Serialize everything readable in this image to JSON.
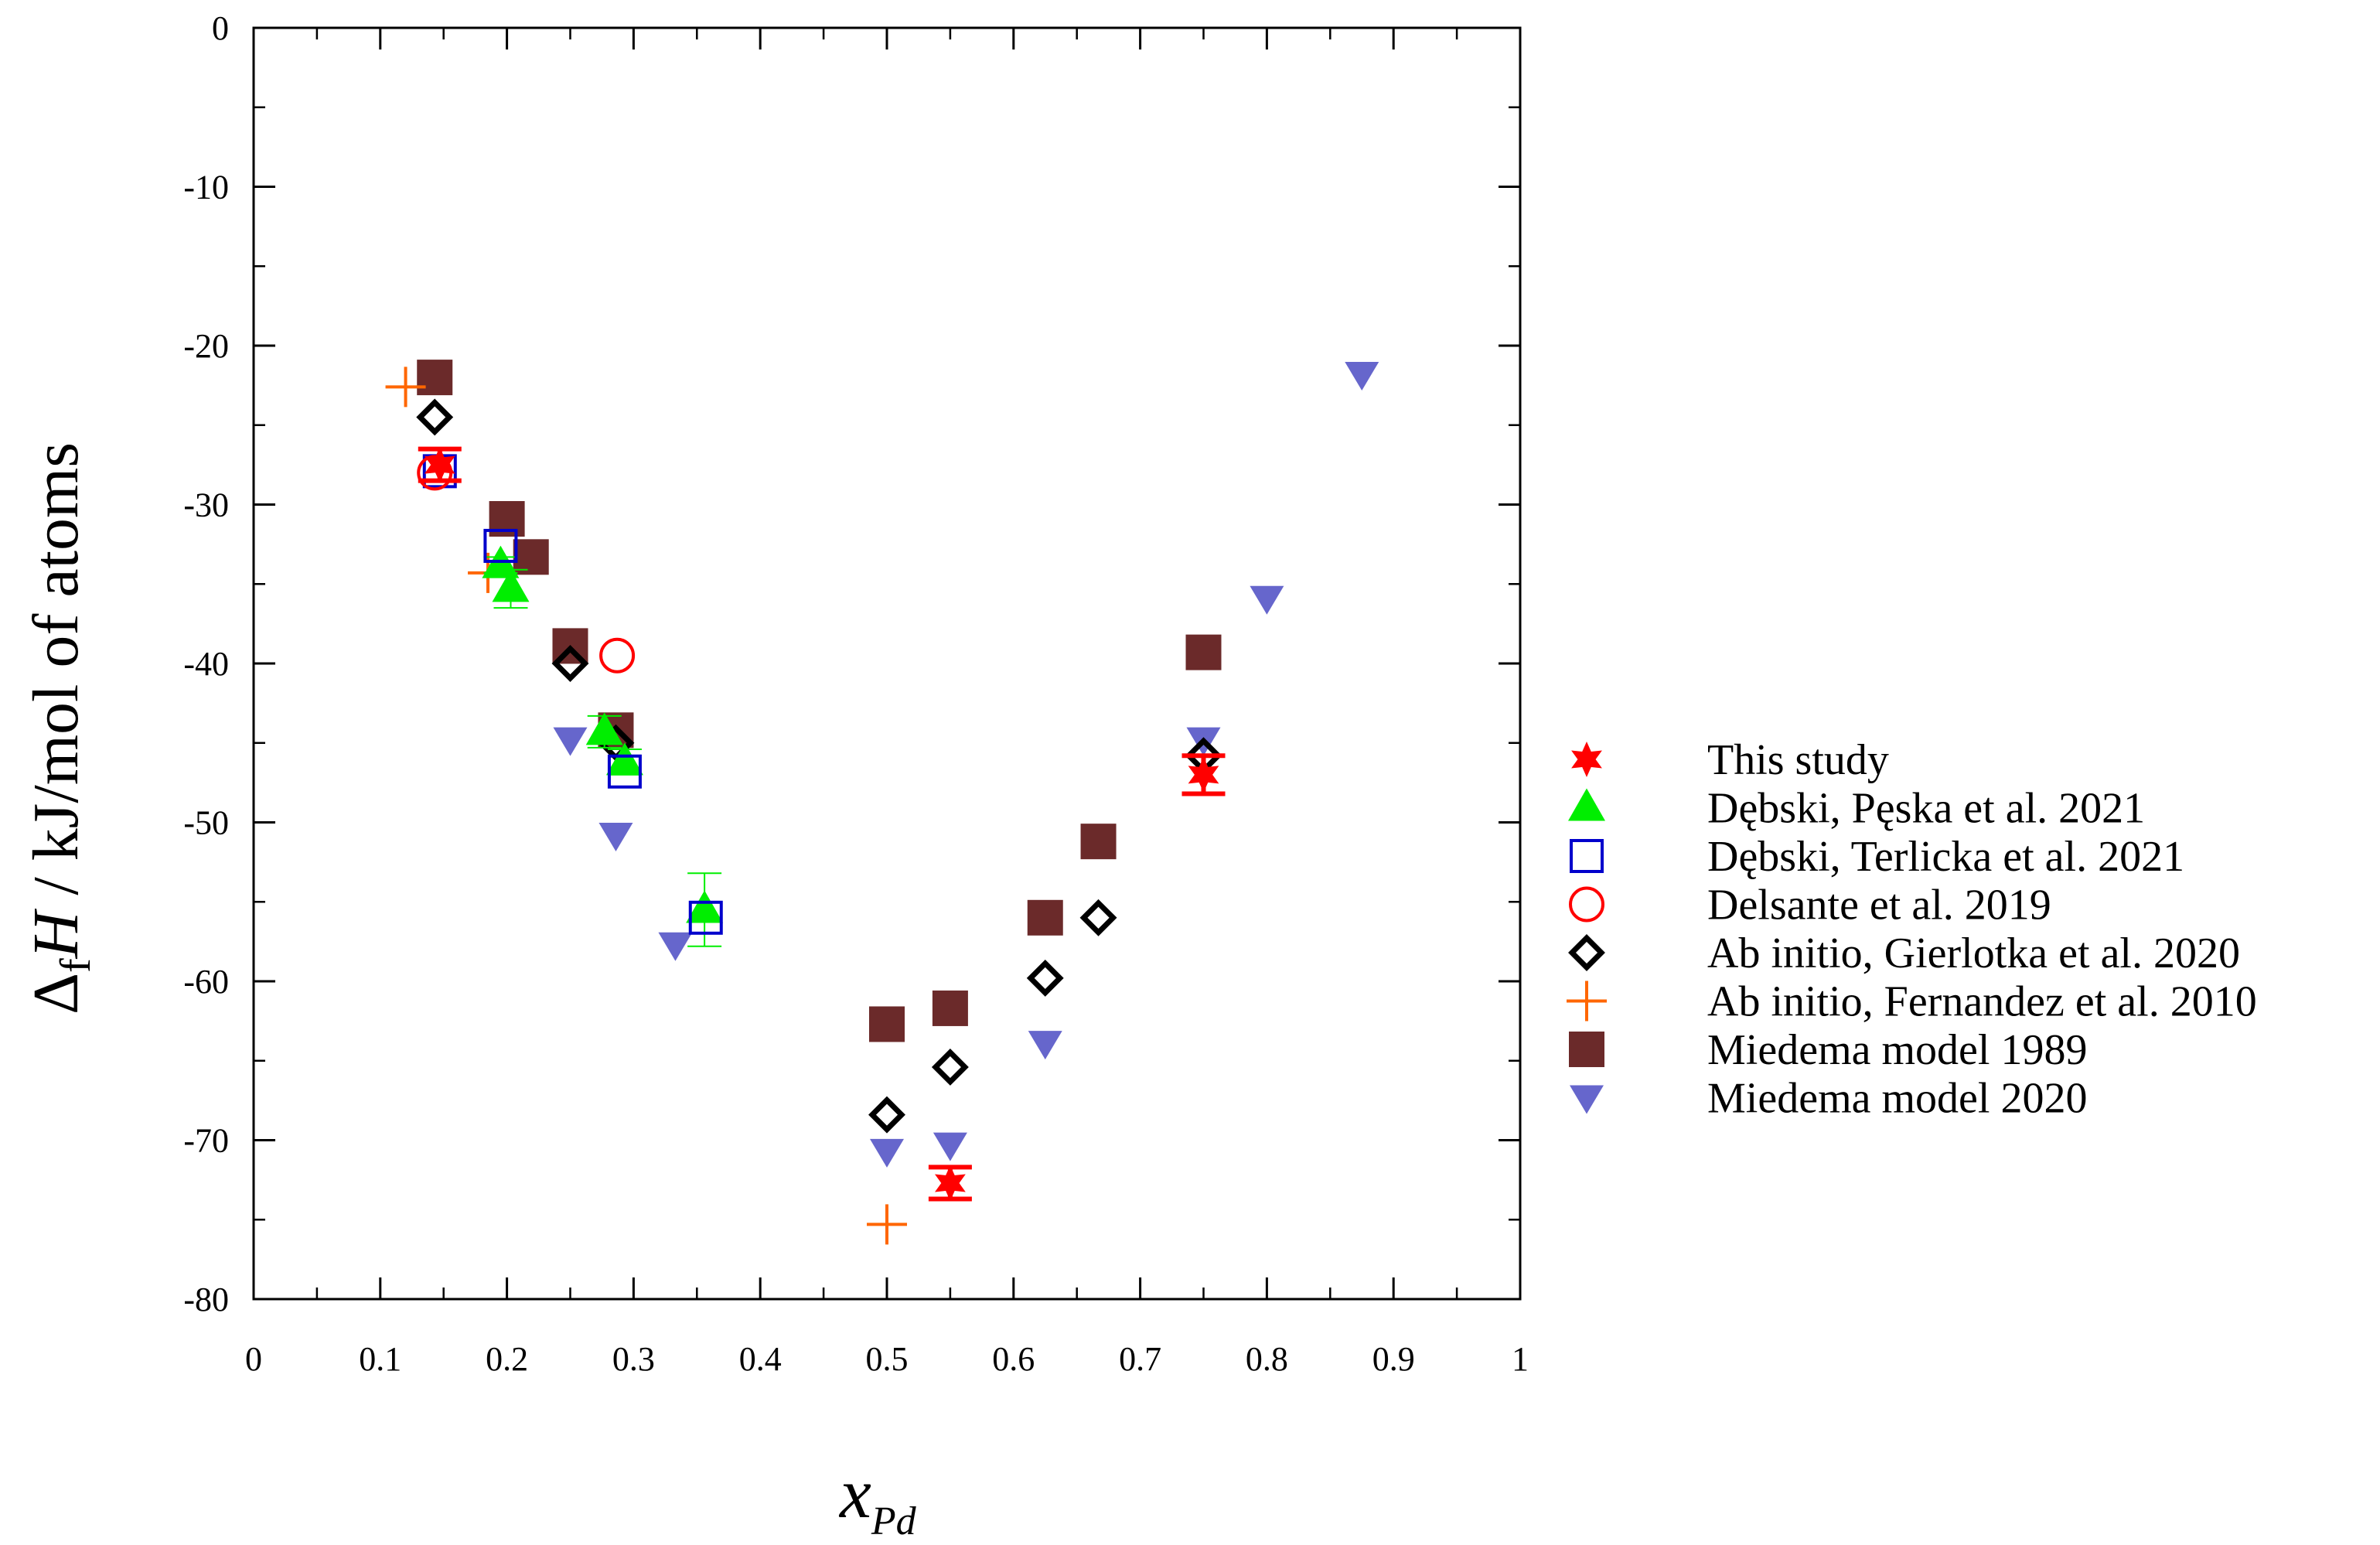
{
  "chart_data": {
    "type": "scatter",
    "title": "",
    "xlabel": {
      "main": "x",
      "sub": "Pd"
    },
    "ylabel": {
      "prefix": "Δ",
      "sub": "f",
      "var": "H",
      "rest": " / kJ/mol of atoms"
    },
    "xlim": [
      0,
      1
    ],
    "ylim": [
      -80,
      0
    ],
    "xticks": [
      "0",
      "0.1",
      "0.2",
      "0.3",
      "0.4",
      "0.5",
      "0.6",
      "0.7",
      "0.8",
      "0.9",
      "1"
    ],
    "yticks": [
      "0",
      "-10",
      "-20",
      "-30",
      "-40",
      "-50",
      "-60",
      "-70",
      "-80"
    ],
    "grid": false,
    "legend_position": "right",
    "series": [
      {
        "name": "This study",
        "marker": "star6",
        "color": "#ff0000",
        "points": [
          {
            "x": 0.147,
            "y": -27.5,
            "err": 1.0
          },
          {
            "x": 0.55,
            "y": -72.7,
            "err": 1.0
          },
          {
            "x": 0.75,
            "y": -47.0,
            "err": 1.2
          }
        ]
      },
      {
        "name": "Dębski, Pęska et al. 2021",
        "marker": "triangle-up",
        "color": "#00ee00",
        "points": [
          {
            "x": 0.195,
            "y": -33.8,
            "err": 0.5
          },
          {
            "x": 0.203,
            "y": -35.3,
            "err": 1.2
          },
          {
            "x": 0.277,
            "y": -44.3,
            "err": 1.0
          },
          {
            "x": 0.293,
            "y": -46.2,
            "err": 0.8
          },
          {
            "x": 0.356,
            "y": -55.5,
            "err": 2.3
          }
        ]
      },
      {
        "name": "Dębski, Terlicka et al. 2021",
        "marker": "square-open",
        "color": "#0000cc",
        "points": [
          {
            "x": 0.147,
            "y": -27.9
          },
          {
            "x": 0.195,
            "y": -32.6
          },
          {
            "x": 0.293,
            "y": -46.8
          },
          {
            "x": 0.357,
            "y": -56.0
          }
        ]
      },
      {
        "name": "Delsante et al. 2019",
        "marker": "circle-open",
        "color": "#ff0000",
        "points": [
          {
            "x": 0.143,
            "y": -28.0
          },
          {
            "x": 0.287,
            "y": -39.5
          }
        ]
      },
      {
        "name": "Ab initio, Gierlotka et al. 2020",
        "marker": "diamond-open",
        "color": "#000000",
        "points": [
          {
            "x": 0.143,
            "y": -24.5
          },
          {
            "x": 0.25,
            "y": -40.0
          },
          {
            "x": 0.286,
            "y": -45.0
          },
          {
            "x": 0.5,
            "y": -68.4
          },
          {
            "x": 0.55,
            "y": -65.4
          },
          {
            "x": 0.625,
            "y": -59.8
          },
          {
            "x": 0.667,
            "y": -56.0
          },
          {
            "x": 0.75,
            "y": -45.8
          }
        ]
      },
      {
        "name": "Ab initio, Fernandez et al. 2010",
        "marker": "plus",
        "color": "#ff6600",
        "points": [
          {
            "x": 0.12,
            "y": -22.6
          },
          {
            "x": 0.185,
            "y": -34.3
          },
          {
            "x": 0.5,
            "y": -75.3
          }
        ]
      },
      {
        "name": "Miedema model 1989",
        "marker": "square-filled",
        "color": "#6b2a2a",
        "points": [
          {
            "x": 0.143,
            "y": -22.0
          },
          {
            "x": 0.2,
            "y": -30.9
          },
          {
            "x": 0.219,
            "y": -33.3
          },
          {
            "x": 0.25,
            "y": -38.9
          },
          {
            "x": 0.286,
            "y": -44.2
          },
          {
            "x": 0.5,
            "y": -62.7
          },
          {
            "x": 0.55,
            "y": -61.7
          },
          {
            "x": 0.625,
            "y": -56.0
          },
          {
            "x": 0.667,
            "y": -51.2
          },
          {
            "x": 0.75,
            "y": -39.3
          }
        ]
      },
      {
        "name": "Miedema model 2020",
        "marker": "triangle-down",
        "color": "#6666cc",
        "points": [
          {
            "x": 0.25,
            "y": -44.8
          },
          {
            "x": 0.286,
            "y": -50.8
          },
          {
            "x": 0.333,
            "y": -57.7
          },
          {
            "x": 0.5,
            "y": -70.7
          },
          {
            "x": 0.55,
            "y": -70.3
          },
          {
            "x": 0.625,
            "y": -63.9
          },
          {
            "x": 0.75,
            "y": -44.8
          },
          {
            "x": 0.8,
            "y": -35.9
          },
          {
            "x": 0.875,
            "y": -21.8
          }
        ]
      }
    ]
  }
}
